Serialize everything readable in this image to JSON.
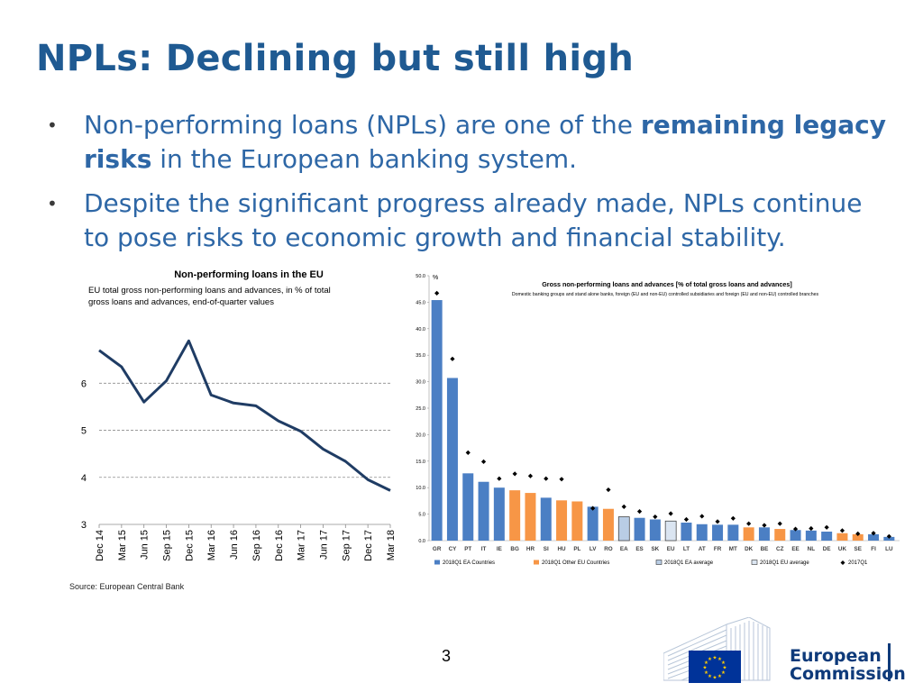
{
  "title": "NPLs: Declining but still high",
  "bullets": [
    {
      "pre": "Non-performing loans (NPLs) are one of the ",
      "bold": "remaining legacy risks",
      "post": " in the European banking system."
    },
    {
      "pre": "Despite the significant progress already made, NPLs continue to pose risks to economic growth and financial stability.",
      "bold": "",
      "post": ""
    }
  ],
  "bullet_symbol": "•",
  "source": "Source: European Central Bank",
  "page_number": "3",
  "logo": {
    "line1": "European",
    "line2": "Commission"
  },
  "colors": {
    "title": "#1f5a92",
    "body": "#2e67a6",
    "line": "#1f3c64",
    "blue_bar": "#4b7fc4",
    "orange_bar": "#f79646",
    "ea_bar": "#b9cde5",
    "eu_bar": "#dbe5f1",
    "marker": "#000000",
    "logo_blue": "#0e3a7a",
    "flag": "#003399",
    "star": "#ffcc00"
  },
  "chart_data": [
    {
      "type": "line",
      "title": "Non-performing loans in the EU",
      "subtitle_line1": "EU total gross non-performing loans and advances, in % of total",
      "subtitle_line2": "gross loans and advances, end-of-quarter values",
      "categories": [
        "Dec 14",
        "Mar 15",
        "Jun 15",
        "Sep 15",
        "Dec 15",
        "Mar 16",
        "Jun 16",
        "Sep 16",
        "Dec 16",
        "Mar 17",
        "Jun 17",
        "Sep 17",
        "Dec 17",
        "Mar 18"
      ],
      "values": [
        6.7,
        6.35,
        5.6,
        6.05,
        6.9,
        5.75,
        5.58,
        5.52,
        5.2,
        4.98,
        4.6,
        4.34,
        3.95,
        3.72
      ],
      "ylim": [
        3,
        7.5
      ],
      "yticks": [
        "3",
        "4",
        "5",
        "6"
      ],
      "grid": true
    },
    {
      "type": "bar",
      "title": "Gross non-performing loans and advances [% of total gross loans and advances]",
      "subtitle": "Domestic banking groups and stand alone banks, foreign (EU and non-EU) controlled subsidiaries and foreign (EU and non-EU) controlled branches",
      "unit_label": "%",
      "categories": [
        "GR",
        "CY",
        "PT",
        "IT",
        "IE",
        "BG",
        "HR",
        "SI",
        "HU",
        "PL",
        "LV",
        "RO",
        "EA",
        "ES",
        "SK",
        "EU",
        "LT",
        "AT",
        "FR",
        "MT",
        "DK",
        "BE",
        "CZ",
        "EE",
        "NL",
        "DE",
        "UK",
        "SE",
        "FI",
        "LU"
      ],
      "groups": [
        "ea",
        "ea",
        "ea",
        "ea",
        "ea",
        "other",
        "other",
        "ea",
        "other",
        "other",
        "ea",
        "other",
        "ea_avg",
        "ea",
        "ea",
        "eu_avg",
        "ea",
        "ea",
        "ea",
        "ea",
        "other",
        "ea",
        "other",
        "ea",
        "ea",
        "ea",
        "other",
        "other",
        "ea",
        "ea"
      ],
      "values_2018q1": [
        45.4,
        30.7,
        12.7,
        11.1,
        10.0,
        9.5,
        9.0,
        8.1,
        7.6,
        7.4,
        6.4,
        6.0,
        4.5,
        4.3,
        4.0,
        3.7,
        3.4,
        3.1,
        3.0,
        3.0,
        2.5,
        2.5,
        2.2,
        2.0,
        1.9,
        1.7,
        1.4,
        1.2,
        1.2,
        0.7
      ],
      "values_2017q1": [
        46.7,
        34.3,
        16.6,
        14.9,
        11.7,
        12.6,
        12.2,
        11.7,
        11.6,
        null,
        6.1,
        9.6,
        6.4,
        5.5,
        4.5,
        5.1,
        4.0,
        4.6,
        3.6,
        4.2,
        3.2,
        2.9,
        3.2,
        2.2,
        2.3,
        2.5,
        1.9,
        1.3,
        1.4,
        0.8
      ],
      "ylim": [
        0,
        50
      ],
      "yticks": [
        "0.0",
        "5.0",
        "10.0",
        "15.0",
        "20.0",
        "25.0",
        "30.0",
        "35.0",
        "40.0",
        "45.0",
        "50.0"
      ],
      "legend": [
        {
          "key": "ea",
          "label": "2018Q1 EA Countries"
        },
        {
          "key": "other",
          "label": "2018Q1 Other EU Countries"
        },
        {
          "key": "ea_avg",
          "label": "2018Q1 EA average"
        },
        {
          "key": "eu_avg",
          "label": "2018Q1 EU average"
        },
        {
          "key": "marker",
          "label": "2017Q1"
        }
      ],
      "legend_position": "bottom"
    }
  ]
}
